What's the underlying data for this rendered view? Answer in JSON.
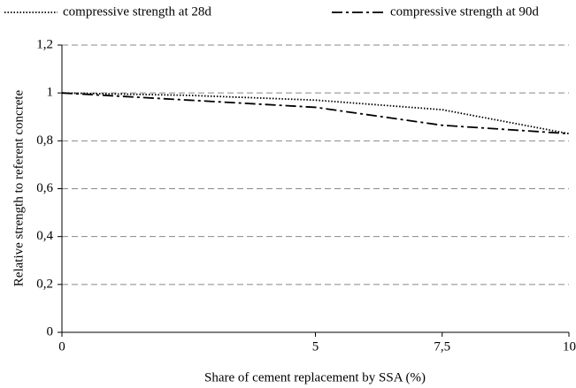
{
  "chart_data": {
    "type": "line",
    "x_label": "Share of cement replacement by SSA (%)",
    "y_label": "Relative strength to referent concrete",
    "x": [
      0,
      2.5,
      5,
      7.5,
      10
    ],
    "series": [
      {
        "name": "compressive strength at 28d",
        "color": "#000000",
        "style": "dotted",
        "values": [
          1.0,
          0.99,
          0.97,
          0.93,
          0.83
        ]
      },
      {
        "name": "compressive strength at 90d",
        "color": "#000000",
        "style": "dashdot",
        "values": [
          1.0,
          0.97,
          0.94,
          0.865,
          0.83
        ]
      }
    ],
    "xlim": [
      0,
      10
    ],
    "xticks": [
      0,
      5,
      {
        "value": 7.5,
        "label": "7,5"
      },
      10
    ],
    "ylim": [
      0,
      1.2
    ],
    "yticks": [
      0,
      {
        "value": 0.2,
        "label": "0,2"
      },
      {
        "value": 0.4,
        "label": "0,4"
      },
      {
        "value": 0.6,
        "label": "0,6"
      },
      {
        "value": 0.8,
        "label": "0,8"
      },
      1,
      {
        "value": 1.2,
        "label": "1,2"
      }
    ],
    "grid": true,
    "legend": "top"
  }
}
